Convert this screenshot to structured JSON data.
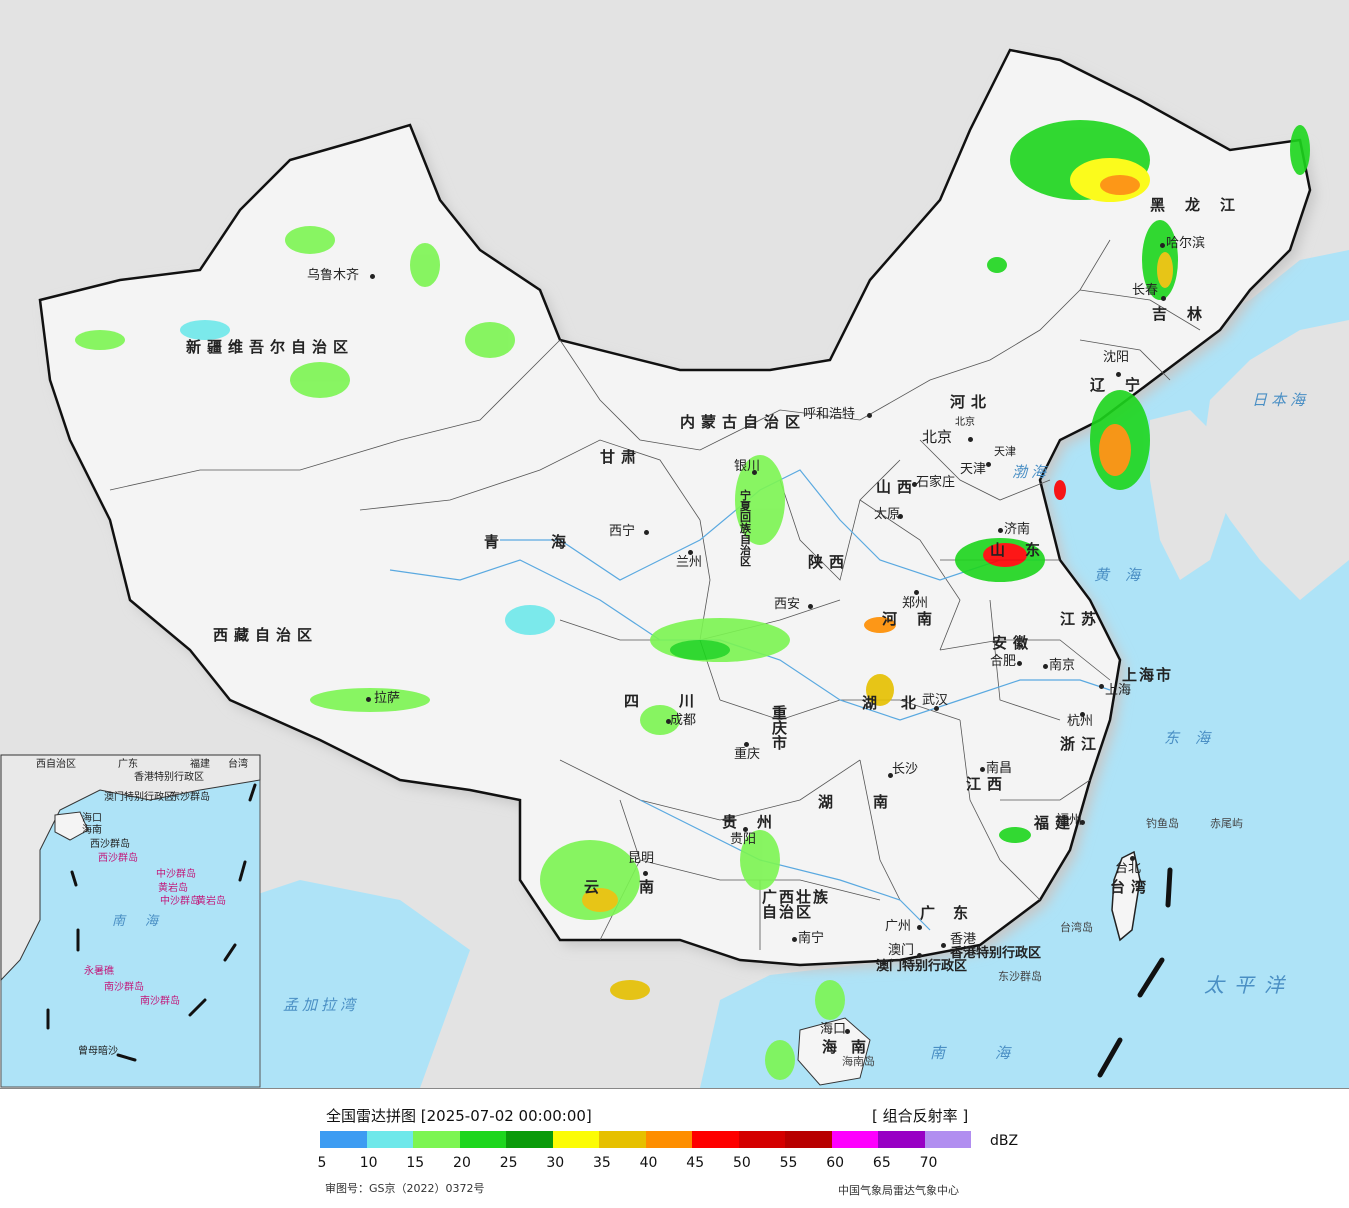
{
  "header": {
    "title": "全国雷达拼图 [2025-07-02 00:00:00]",
    "product": "[ 组合反射率 ]"
  },
  "legend": {
    "unit": "dBZ",
    "ticks": [
      "5",
      "10",
      "15",
      "20",
      "25",
      "30",
      "35",
      "40",
      "45",
      "50",
      "55",
      "60",
      "65",
      "70"
    ],
    "colors": [
      "#3d9cf2",
      "#6ee8ea",
      "#7cf552",
      "#1dd61d",
      "#0a9a0a",
      "#fcfc05",
      "#e6c000",
      "#fe8e00",
      "#fe0000",
      "#d40000",
      "#b80000",
      "#fe00fe",
      "#9800c4",
      "#b18ef0"
    ]
  },
  "footer": {
    "approval": "审图号：GS京（2022）0372号",
    "source": "中国气象局雷达气象中心"
  },
  "map": {
    "provinces": [
      "新疆维吾尔自治区",
      "西藏自治区",
      "青海",
      "甘肃",
      "内蒙古自治区",
      "黑龙江",
      "吉林",
      "辽宁",
      "河北",
      "山西",
      "陕西",
      "四川",
      "云南",
      "贵州",
      "湖南",
      "湖北",
      "河南",
      "山东",
      "江苏",
      "安徽",
      "浙江",
      "江西",
      "福建",
      "广东",
      "广西壮族自治区",
      "海南",
      "台湾",
      "宁夏回族自治区",
      "重庆市",
      "上海市",
      "天津",
      "北京",
      "香港特别行政区",
      "澳门特别行政区"
    ],
    "cities": [
      "乌鲁木齐",
      "拉萨",
      "西宁",
      "兰州",
      "银川",
      "呼和浩特",
      "北京",
      "天津",
      "石家庄",
      "太原",
      "济南",
      "郑州",
      "西安",
      "成都",
      "重庆",
      "贵阳",
      "昆明",
      "南宁",
      "广州",
      "香港",
      "澳门",
      "海口",
      "长沙",
      "武汉",
      "合肥",
      "南京",
      "上海",
      "杭州",
      "南昌",
      "福州",
      "台北",
      "沈阳",
      "长春",
      "哈尔滨"
    ],
    "seas": [
      "日本海",
      "渤海",
      "黄海",
      "东海",
      "太平洋",
      "南海",
      "孟加拉湾"
    ],
    "islands": [
      "钓鱼岛",
      "赤尾屿",
      "台湾岛",
      "东沙群岛",
      "海南岛"
    ],
    "inset": {
      "labels": [
        "西自治区",
        "广东",
        "福建",
        "台湾",
        "香港特别行政区",
        "澳门特别行政区",
        "海口",
        "海南",
        "西沙群岛",
        "东沙群岛",
        "南海",
        "中沙群岛",
        "黄岩岛",
        "南沙群岛",
        "曾母暗沙"
      ],
      "pink": [
        "西沙群岛",
        "中沙群岛",
        "黄岩岛",
        "南沙群岛",
        "永暑礁"
      ]
    }
  }
}
